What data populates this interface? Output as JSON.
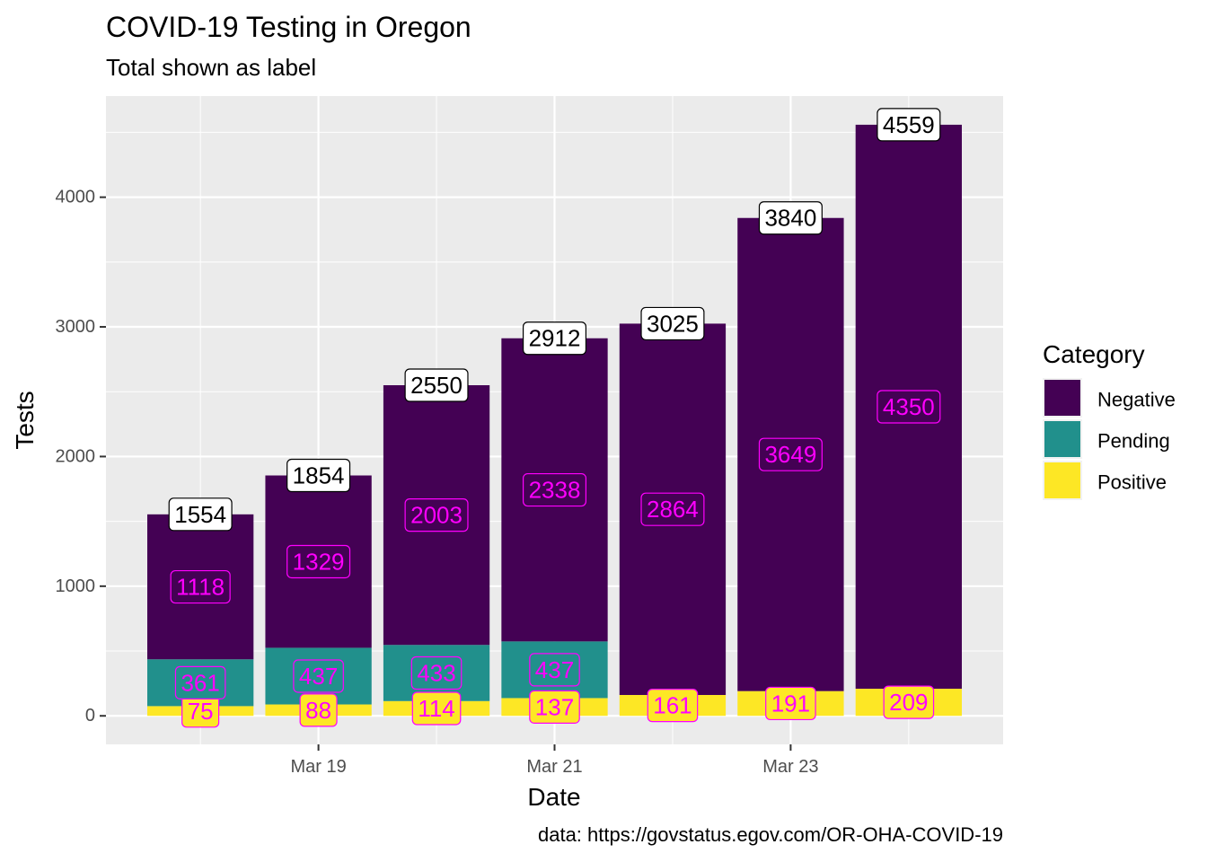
{
  "chart_data": {
    "type": "bar",
    "stacked": true,
    "title": "COVID-19 Testing in Oregon",
    "subtitle": "Total shown as label",
    "xlabel": "Date",
    "ylabel": "Tests",
    "caption": "data: https://govstatus.egov.com/OR-OHA-COVID-19",
    "ylim": [
      -220,
      4780
    ],
    "y_ticks": [
      0,
      1000,
      2000,
      3000,
      4000
    ],
    "x_tick_labels": [
      {
        "category_index": 1,
        "label": "Mar 19"
      },
      {
        "category_index": 3,
        "label": "Mar 21"
      },
      {
        "category_index": 5,
        "label": "Mar 23"
      }
    ],
    "grid": true,
    "legend": {
      "title": "Category",
      "position": "right"
    },
    "categories": [
      "2020-03-18",
      "2020-03-19",
      "2020-03-20",
      "2020-03-21",
      "2020-03-22",
      "2020-03-23",
      "2020-03-24"
    ],
    "series": [
      {
        "name": "Positive",
        "color": "#FDE725",
        "values": [
          75,
          88,
          114,
          137,
          161,
          191,
          209
        ]
      },
      {
        "name": "Pending",
        "color": "#21908C",
        "values": [
          361,
          437,
          433,
          437,
          0,
          0,
          0
        ]
      },
      {
        "name": "Negative",
        "color": "#440154",
        "values": [
          1118,
          1329,
          2003,
          2338,
          2864,
          3649,
          4350
        ]
      }
    ],
    "totals": [
      1554,
      1854,
      2550,
      2912,
      3025,
      3840,
      4559
    ],
    "legend_order": [
      "Negative",
      "Pending",
      "Positive"
    ],
    "label_color": "#FF00FF",
    "panel_color": "#EBEBEB",
    "gridline_color": "#FFFFFF"
  }
}
